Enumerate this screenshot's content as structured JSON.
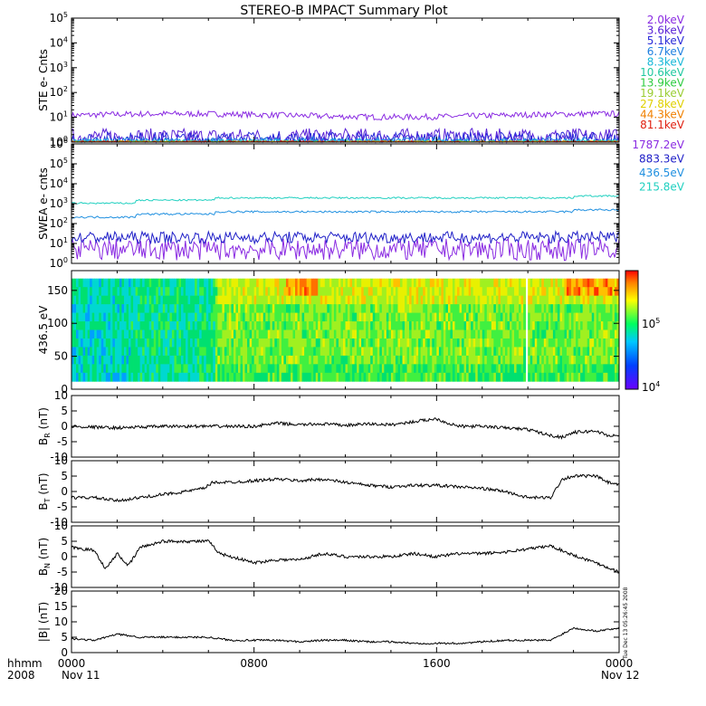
{
  "title": "STEREO-B IMPACT Summary Plot",
  "footer": {
    "left_top": "hhmm",
    "left_bottom": "2008",
    "start_date": "Nov 11",
    "end_date": "Nov 12",
    "timestamp": "Tue Dec 13 05:26:45 2008"
  },
  "colors": {
    "panel_border": "#000000",
    "trace": "#000000",
    "background": "#ffffff"
  },
  "chart_data": [
    {
      "type": "line",
      "id": "ste",
      "ylabel": "STE e- Cnts",
      "yscale": "log",
      "ylim": [
        1,
        100000
      ],
      "yticks": [
        1,
        10,
        100,
        1000,
        10000,
        100000
      ],
      "ytick_labels": [
        "10^0",
        "10^1",
        "10^2",
        "10^3",
        "10^4",
        "10^5"
      ],
      "x": [
        "0000",
        "0800",
        "1600",
        "0000"
      ],
      "xlim": [
        "2008-11-11T00:00",
        "2008-11-12T00:00"
      ],
      "series": [
        {
          "name": "2.0keV",
          "color": "#8a2be2",
          "level": 12,
          "noise": 0.12
        },
        {
          "name": "3.6keV",
          "color": "#5a22d6",
          "level": 1.6,
          "noise": 0.35
        },
        {
          "name": "5.1keV",
          "color": "#2a2ad8",
          "level": 1.3,
          "noise": 0.3
        },
        {
          "name": "6.7keV",
          "color": "#1f80e0",
          "level": 1.1,
          "noise": 0.15
        },
        {
          "name": "8.3keV",
          "color": "#19b8d8",
          "level": 1.05,
          "noise": 0.1
        },
        {
          "name": "10.6keV",
          "color": "#20c8a0",
          "level": 1.0,
          "noise": 0.05
        },
        {
          "name": "13.9keV",
          "color": "#2ecc40",
          "level": 1.0,
          "noise": 0.05
        },
        {
          "name": "19.1keV",
          "color": "#9acd32",
          "level": 1.0,
          "noise": 0.05
        },
        {
          "name": "27.8keV",
          "color": "#e0d000",
          "level": 1.0,
          "noise": 0.05
        },
        {
          "name": "44.3keV",
          "color": "#f08000",
          "level": 1.0,
          "noise": 0.05
        },
        {
          "name": "81.1keV",
          "color": "#e02010",
          "level": 1.0,
          "noise": 0.05
        }
      ]
    },
    {
      "type": "line",
      "id": "swea",
      "ylabel": "SWEA e- cnts",
      "yscale": "log",
      "ylim": [
        1,
        1000000
      ],
      "yticks": [
        1,
        10,
        100,
        1000,
        10000,
        100000,
        1000000
      ],
      "ytick_labels": [
        "10^0",
        "10^1",
        "10^2",
        "10^3",
        "10^4",
        "10^5",
        "10^6"
      ],
      "series": [
        {
          "name": "1787.2eV",
          "color": "#8a2be2",
          "level": 5,
          "noise": 0.55
        },
        {
          "name": "883.3eV",
          "color": "#2020c8",
          "level": 20,
          "noise": 0.3
        },
        {
          "name": "436.5eV",
          "color": "#2090e0",
          "level": 300,
          "noise": 0.05
        },
        {
          "name": "215.8eV",
          "color": "#20d0c0",
          "level": 1500,
          "noise": 0.04
        }
      ]
    },
    {
      "type": "heatmap",
      "id": "pad",
      "ylabel": "436.5 eV",
      "ylim": [
        0,
        180
      ],
      "yticks": [
        0,
        50,
        100,
        150
      ],
      "ytick_labels": [
        "0",
        "50",
        "100",
        "150"
      ],
      "colorbar": {
        "scale": "log",
        "range": [
          10000,
          400000
        ],
        "tick_labels": [
          "10^4",
          "10^5"
        ]
      }
    },
    {
      "type": "line",
      "id": "br",
      "ylabel": "B_R (nT)",
      "ylim": [
        -10,
        10
      ],
      "yticks": [
        -10,
        -5,
        0,
        5,
        10
      ],
      "ytick_labels": [
        "-10",
        "-5",
        "0",
        "5",
        "10"
      ],
      "points": [
        [
          0,
          0
        ],
        [
          2,
          -0.5
        ],
        [
          4,
          0
        ],
        [
          6,
          0
        ],
        [
          8,
          0
        ],
        [
          9,
          1
        ],
        [
          10,
          0.5
        ],
        [
          11,
          0.8
        ],
        [
          12,
          0.3
        ],
        [
          13,
          0.8
        ],
        [
          14,
          0.5
        ],
        [
          15.5,
          2
        ],
        [
          16,
          2.5
        ],
        [
          16.5,
          1
        ],
        [
          17,
          0
        ],
        [
          18,
          0
        ],
        [
          19,
          -0.5
        ],
        [
          20,
          -1
        ],
        [
          21,
          -3
        ],
        [
          21.5,
          -3.5
        ],
        [
          22,
          -2
        ],
        [
          23,
          -1.5
        ],
        [
          23.5,
          -3
        ],
        [
          24,
          -3
        ]
      ]
    },
    {
      "type": "line",
      "id": "bt",
      "ylabel": "B_T (nT)",
      "ylim": [
        -10,
        10
      ],
      "yticks": [
        -10,
        -5,
        0,
        5,
        10
      ],
      "ytick_labels": [
        "-10",
        "-5",
        "0",
        "5",
        "10"
      ],
      "points": [
        [
          0,
          -2
        ],
        [
          1,
          -2
        ],
        [
          2,
          -3
        ],
        [
          3,
          -2
        ],
        [
          4,
          -1
        ],
        [
          4.5,
          -0.5
        ],
        [
          5,
          0
        ],
        [
          5.8,
          1
        ],
        [
          6.2,
          3
        ],
        [
          7,
          3
        ],
        [
          8,
          3.5
        ],
        [
          9,
          4
        ],
        [
          10,
          3.5
        ],
        [
          11,
          4
        ],
        [
          12,
          3
        ],
        [
          13,
          2
        ],
        [
          14,
          1.5
        ],
        [
          15,
          2
        ],
        [
          16,
          2
        ],
        [
          17,
          1.5
        ],
        [
          18,
          1
        ],
        [
          19,
          0
        ],
        [
          20,
          -2
        ],
        [
          21,
          -2
        ],
        [
          21.5,
          4
        ],
        [
          22,
          5
        ],
        [
          23,
          5
        ],
        [
          23.5,
          3
        ],
        [
          24,
          2
        ]
      ]
    },
    {
      "type": "line",
      "id": "bn",
      "ylabel": "B_N (nT)",
      "ylim": [
        -10,
        10
      ],
      "yticks": [
        -10,
        -5,
        0,
        5,
        10
      ],
      "ytick_labels": [
        "-10",
        "-5",
        "0",
        "5",
        "10"
      ],
      "points": [
        [
          0,
          3
        ],
        [
          1,
          2
        ],
        [
          1.5,
          -4
        ],
        [
          2,
          1
        ],
        [
          2.5,
          -3
        ],
        [
          3,
          3
        ],
        [
          4,
          5
        ],
        [
          5,
          5
        ],
        [
          6,
          5
        ],
        [
          6.5,
          1
        ],
        [
          7,
          0
        ],
        [
          8,
          -2
        ],
        [
          9,
          -1
        ],
        [
          10,
          -1
        ],
        [
          11,
          1
        ],
        [
          12,
          0
        ],
        [
          13,
          0
        ],
        [
          14,
          0
        ],
        [
          15,
          1
        ],
        [
          16,
          0
        ],
        [
          17,
          1
        ],
        [
          18,
          1
        ],
        [
          19,
          1.5
        ],
        [
          20,
          2.5
        ],
        [
          21,
          3.5
        ],
        [
          22,
          0.5
        ],
        [
          23,
          -2
        ],
        [
          24,
          -5
        ]
      ]
    },
    {
      "type": "line",
      "id": "bmag",
      "ylabel": "|B| (nT)",
      "ylim": [
        0,
        20
      ],
      "yticks": [
        0,
        5,
        10,
        15,
        20
      ],
      "ytick_labels": [
        "0",
        "5",
        "10",
        "15",
        "20"
      ],
      "points": [
        [
          0,
          4.5
        ],
        [
          1,
          4
        ],
        [
          2,
          6
        ],
        [
          3,
          5
        ],
        [
          4,
          5
        ],
        [
          5,
          5
        ],
        [
          6,
          5
        ],
        [
          7,
          4
        ],
        [
          8,
          4
        ],
        [
          9,
          4
        ],
        [
          10,
          3.5
        ],
        [
          11,
          4
        ],
        [
          12,
          4
        ],
        [
          13,
          3.5
        ],
        [
          14,
          3.5
        ],
        [
          15,
          3
        ],
        [
          16,
          3
        ],
        [
          17,
          3
        ],
        [
          18,
          3.5
        ],
        [
          19,
          4
        ],
        [
          20,
          4
        ],
        [
          21,
          4
        ],
        [
          21.5,
          6
        ],
        [
          22,
          8
        ],
        [
          23,
          7
        ],
        [
          24,
          8
        ]
      ]
    }
  ],
  "xaxis": {
    "tick_labels": [
      "0000",
      "0800",
      "1600",
      "0000"
    ],
    "tick_hours": [
      0,
      8,
      16,
      24
    ]
  }
}
